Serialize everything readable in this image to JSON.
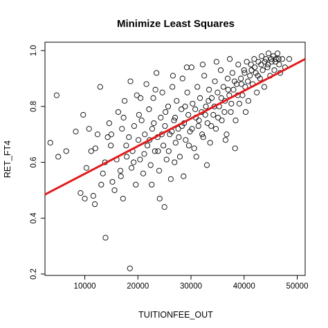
{
  "chart_data": {
    "type": "scatter",
    "title": "Minimize Least Squares",
    "xlabel": "TUITIONFEE_OUT",
    "ylabel": "RET_FT4",
    "xlim": [
      2500,
      51500
    ],
    "ylim": [
      0.195,
      1.03
    ],
    "x_ticks": [
      {
        "value": 10000,
        "label": "10000"
      },
      {
        "value": 20000,
        "label": "20000"
      },
      {
        "value": 30000,
        "label": "30000"
      },
      {
        "value": 40000,
        "label": "40000"
      },
      {
        "value": 50000,
        "label": "50000"
      }
    ],
    "y_ticks": [
      {
        "value": 0.2,
        "label": "0.2"
      },
      {
        "value": 0.4,
        "label": "0.4"
      },
      {
        "value": 0.6,
        "label": "0.6"
      },
      {
        "value": 0.8,
        "label": "0.8"
      },
      {
        "value": 1.0,
        "label": "1.0"
      }
    ],
    "point_style": {
      "shape": "open-circle",
      "color": "#000000"
    },
    "fit_line": {
      "color": "#e31a1c",
      "intercept": 0.46,
      "slope": 9.9e-06
    },
    "points": [
      [
        3500,
        0.67
      ],
      [
        4700,
        0.84
      ],
      [
        5000,
        0.62
      ],
      [
        6500,
        0.64
      ],
      [
        8300,
        0.71
      ],
      [
        9200,
        0.49
      ],
      [
        9700,
        0.77
      ],
      [
        10000,
        0.47
      ],
      [
        10300,
        0.58
      ],
      [
        10800,
        0.72
      ],
      [
        11200,
        0.64
      ],
      [
        11600,
        0.48
      ],
      [
        11900,
        0.45
      ],
      [
        12400,
        0.7
      ],
      [
        12900,
        0.87
      ],
      [
        13100,
        0.52
      ],
      [
        13400,
        0.56
      ],
      [
        13800,
        0.6
      ],
      [
        13900,
        0.33
      ],
      [
        14300,
        0.69
      ],
      [
        14600,
        0.74
      ],
      [
        14900,
        0.66
      ],
      [
        15200,
        0.53
      ],
      [
        15600,
        0.5
      ],
      [
        16000,
        0.61
      ],
      [
        16300,
        0.78
      ],
      [
        16700,
        0.57
      ],
      [
        17000,
        0.72
      ],
      [
        17200,
        0.47
      ],
      [
        17500,
        0.82
      ],
      [
        17900,
        0.62
      ],
      [
        18300,
        0.69
      ],
      [
        18500,
        0.22
      ],
      [
        18600,
        0.89
      ],
      [
        18800,
        0.58
      ],
      [
        19000,
        0.64
      ],
      [
        19300,
        0.73
      ],
      [
        19600,
        0.52
      ],
      [
        19800,
        0.84
      ],
      [
        20100,
        0.68
      ],
      [
        20400,
        0.61
      ],
      [
        20700,
        0.75
      ],
      [
        21000,
        0.56
      ],
      [
        21300,
        0.7
      ],
      [
        21600,
        0.88
      ],
      [
        21800,
        0.66
      ],
      [
        22100,
        0.79
      ],
      [
        22400,
        0.59
      ],
      [
        22700,
        0.72
      ],
      [
        22900,
        0.83
      ],
      [
        23200,
        0.64
      ],
      [
        23500,
        0.92
      ],
      [
        23700,
        0.69
      ],
      [
        24000,
        0.57
      ],
      [
        24300,
        0.76
      ],
      [
        24600,
        0.85
      ],
      [
        24800,
        0.66
      ],
      [
        25100,
        0.73
      ],
      [
        25400,
        0.61
      ],
      [
        25700,
        0.8
      ],
      [
        26000,
        0.7
      ],
      [
        26200,
        0.54
      ],
      [
        26500,
        0.87
      ],
      [
        26800,
        0.75
      ],
      [
        27100,
        0.67
      ],
      [
        27300,
        0.82
      ],
      [
        27600,
        0.72
      ],
      [
        27900,
        0.62
      ],
      [
        28200,
        0.79
      ],
      [
        28400,
        0.9
      ],
      [
        28700,
        0.74
      ],
      [
        29000,
        0.68
      ],
      [
        29300,
        0.85
      ],
      [
        29500,
        0.77
      ],
      [
        29800,
        0.71
      ],
      [
        30100,
        0.94
      ],
      [
        30300,
        0.81
      ],
      [
        30600,
        0.65
      ],
      [
        30900,
        0.76
      ],
      [
        31200,
        0.87
      ],
      [
        31400,
        0.73
      ],
      [
        31700,
        0.83
      ],
      [
        32000,
        0.78
      ],
      [
        32300,
        0.69
      ],
      [
        32500,
        0.91
      ],
      [
        32800,
        0.8
      ],
      [
        33100,
        0.74
      ],
      [
        33400,
        0.86
      ],
      [
        33600,
        0.67
      ],
      [
        33900,
        0.83
      ],
      [
        34200,
        0.77
      ],
      [
        34500,
        0.89
      ],
      [
        34700,
        0.72
      ],
      [
        35000,
        0.85
      ],
      [
        35300,
        0.8
      ],
      [
        35600,
        0.93
      ],
      [
        35800,
        0.75
      ],
      [
        36100,
        0.87
      ],
      [
        36400,
        0.82
      ],
      [
        36700,
        0.7
      ],
      [
        36900,
        0.9
      ],
      [
        37200,
        0.84
      ],
      [
        37500,
        0.78
      ],
      [
        37800,
        0.92
      ],
      [
        38000,
        0.86
      ],
      [
        38300,
        0.65
      ],
      [
        38600,
        0.88
      ],
      [
        38900,
        0.95
      ],
      [
        39100,
        0.81
      ],
      [
        39400,
        0.9
      ],
      [
        39700,
        0.84
      ],
      [
        40000,
        0.93
      ],
      [
        40200,
        0.87
      ],
      [
        40500,
        0.96
      ],
      [
        40800,
        0.82
      ],
      [
        41100,
        0.91
      ],
      [
        41300,
        0.95
      ],
      [
        41600,
        0.88
      ],
      [
        41900,
        0.97
      ],
      [
        42200,
        0.92
      ],
      [
        42400,
        0.85
      ],
      [
        42700,
        0.96
      ],
      [
        43000,
        0.9
      ],
      [
        43300,
        0.98
      ],
      [
        43500,
        0.93
      ],
      [
        43800,
        0.87
      ],
      [
        44100,
        0.97
      ],
      [
        44400,
        0.94
      ],
      [
        44600,
        0.99
      ],
      [
        44900,
        0.91
      ],
      [
        45200,
        0.96
      ],
      [
        45500,
        0.98
      ],
      [
        45700,
        0.93
      ],
      [
        46000,
        0.97
      ],
      [
        46300,
        0.99
      ],
      [
        46600,
        0.95
      ],
      [
        46800,
        0.92
      ],
      [
        47200,
        0.97
      ],
      [
        47700,
        0.94
      ],
      [
        48500,
        0.97
      ],
      [
        16800,
        0.55
      ],
      [
        17800,
        0.66
      ],
      [
        19200,
        0.6
      ],
      [
        20200,
        0.77
      ],
      [
        21200,
        0.63
      ],
      [
        22200,
        0.68
      ],
      [
        23000,
        0.74
      ],
      [
        23800,
        0.64
      ],
      [
        24500,
        0.7
      ],
      [
        25200,
        0.78
      ],
      [
        25800,
        0.64
      ],
      [
        26400,
        0.71
      ],
      [
        27000,
        0.76
      ],
      [
        27700,
        0.69
      ],
      [
        28300,
        0.73
      ],
      [
        28900,
        0.8
      ],
      [
        29600,
        0.66
      ],
      [
        30200,
        0.72
      ],
      [
        30800,
        0.79
      ],
      [
        31500,
        0.75
      ],
      [
        32100,
        0.7
      ],
      [
        32700,
        0.77
      ],
      [
        33300,
        0.82
      ],
      [
        33800,
        0.73
      ],
      [
        34400,
        0.8
      ],
      [
        35100,
        0.76
      ],
      [
        35700,
        0.83
      ],
      [
        36300,
        0.78
      ],
      [
        37000,
        0.86
      ],
      [
        37600,
        0.81
      ],
      [
        38200,
        0.89
      ],
      [
        38800,
        0.84
      ],
      [
        39500,
        0.88
      ],
      [
        40100,
        0.92
      ],
      [
        40700,
        0.89
      ],
      [
        41400,
        0.93
      ],
      [
        42000,
        0.94
      ],
      [
        42600,
        0.91
      ],
      [
        43200,
        0.95
      ],
      [
        43900,
        0.96
      ],
      [
        44500,
        0.95
      ],
      [
        45100,
        0.97
      ],
      [
        45900,
        0.96
      ],
      [
        46500,
        0.97
      ],
      [
        22600,
        0.52
      ],
      [
        24100,
        0.47
      ],
      [
        25000,
        0.44
      ],
      [
        26900,
        0.6
      ],
      [
        28600,
        0.55
      ],
      [
        31000,
        0.62
      ],
      [
        33000,
        0.59
      ],
      [
        36500,
        0.68
      ],
      [
        38400,
        0.75
      ],
      [
        40300,
        0.78
      ],
      [
        12000,
        0.65
      ],
      [
        15000,
        0.7
      ],
      [
        17300,
        0.76
      ],
      [
        20500,
        0.83
      ],
      [
        23300,
        0.86
      ],
      [
        26600,
        0.91
      ],
      [
        29200,
        0.94
      ],
      [
        32200,
        0.95
      ],
      [
        34800,
        0.96
      ],
      [
        37300,
        0.97
      ]
    ]
  }
}
